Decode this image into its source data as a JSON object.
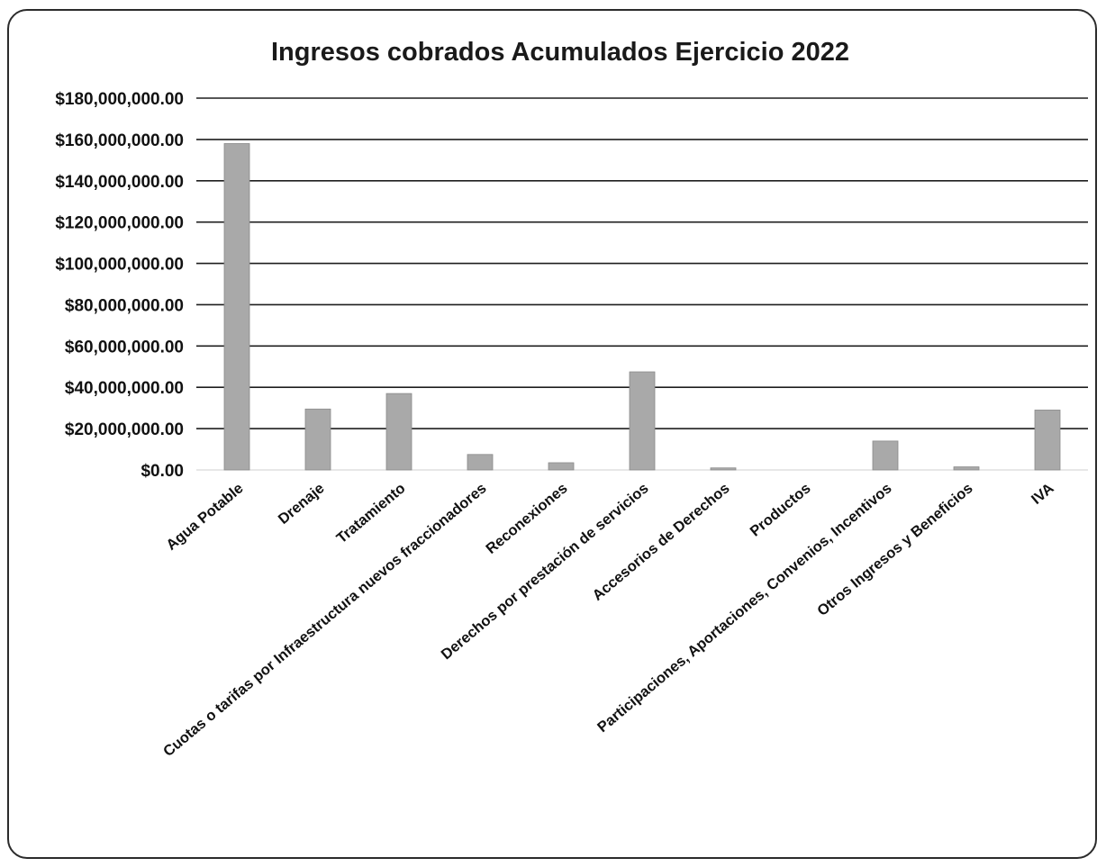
{
  "chart_data": {
    "type": "bar",
    "title": "Ingresos cobrados Acumulados Ejercicio 2022",
    "xlabel": "",
    "ylabel": "",
    "ylim": [
      0,
      180000000
    ],
    "yticks": [
      0,
      20000000,
      40000000,
      60000000,
      80000000,
      100000000,
      120000000,
      140000000,
      160000000,
      180000000
    ],
    "ytick_labels": [
      "$0.00",
      "$20,000,000.00",
      "$40,000,000.00",
      "$60,000,000.00",
      "$80,000,000.00",
      "$100,000,000.00",
      "$120,000,000.00",
      "$140,000,000.00",
      "$160,000,000.00",
      "$180,000,000.00"
    ],
    "grid": true,
    "legend": "none",
    "bar_color": "#a9a9a9",
    "categories": [
      "Agua Potable",
      "Drenaje",
      "Tratamiento",
      "Cuotas o tarifas por Infraestructura nuevos fraccionadores",
      "Reconexiones",
      "Derechos por prestación de servicios",
      "Accesorios de Derechos",
      "Productos",
      "Participaciones, Aportaciones, Convenios, Incentivos",
      "Otros Ingresos y Beneficios",
      "IVA"
    ],
    "values": [
      158000000,
      29500000,
      37000000,
      7500000,
      3500000,
      47500000,
      1000000,
      0,
      14000000,
      1500000,
      29000000
    ]
  }
}
